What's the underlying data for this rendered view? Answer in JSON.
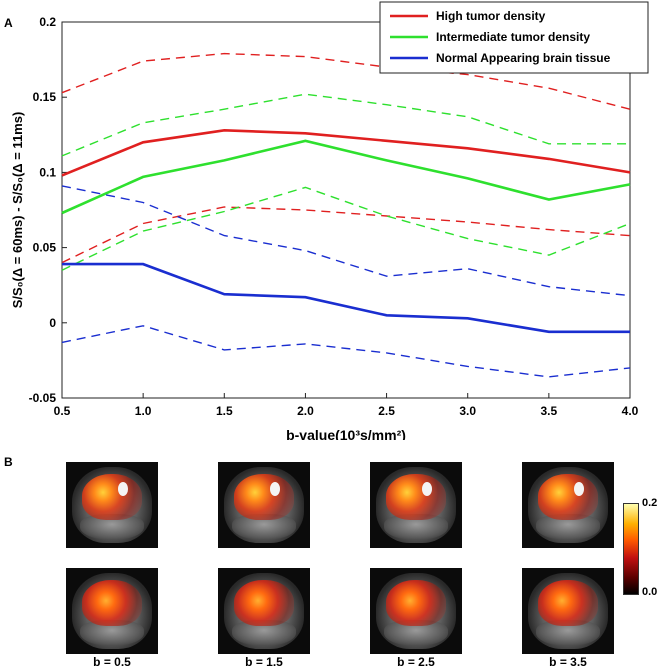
{
  "panel_a_label": "A",
  "panel_b_label": "B",
  "chart_data": {
    "type": "line",
    "xlabel": "b-value(10³s/mm²)",
    "ylabel": "S/S₀(Δ = 60ms) - S/S₀(Δ = 11ms)",
    "xlim": [
      0.5,
      4.0
    ],
    "ylim": [
      -0.05,
      0.2
    ],
    "x_ticks": [
      0.5,
      1.0,
      1.5,
      2.0,
      2.5,
      3.0,
      3.5,
      4.0
    ],
    "x_tick_labels": [
      "0.5",
      "1.0",
      "1.5",
      "2.0",
      "2.5",
      "3.0",
      "3.5",
      "4.0"
    ],
    "y_ticks": [
      -0.05,
      0,
      0.05,
      0.1,
      0.15,
      0.2
    ],
    "y_tick_labels": [
      "-0.05",
      "0",
      "0.05",
      "0.1",
      "0.15",
      "0.2"
    ],
    "x": [
      0.5,
      1.0,
      1.5,
      2.0,
      2.5,
      3.0,
      3.5,
      4.0
    ],
    "legend_position": "top-right",
    "series": [
      {
        "name": "High tumor density",
        "color": "#e02020",
        "style": "solid",
        "values": [
          0.098,
          0.12,
          0.128,
          0.126,
          0.121,
          0.116,
          0.109,
          0.1
        ]
      },
      {
        "name": "High tumor density (upper bound)",
        "color": "#e02020",
        "style": "dashed",
        "values": [
          0.153,
          0.174,
          0.179,
          0.177,
          0.17,
          0.165,
          0.156,
          0.142
        ]
      },
      {
        "name": "High tumor density (lower bound)",
        "color": "#e02020",
        "style": "dashed",
        "values": [
          0.04,
          0.066,
          0.077,
          0.075,
          0.071,
          0.067,
          0.062,
          0.058
        ]
      },
      {
        "name": "Intermediate tumor density",
        "color": "#2ee02e",
        "style": "solid",
        "values": [
          0.073,
          0.097,
          0.108,
          0.121,
          0.108,
          0.096,
          0.082,
          0.092
        ]
      },
      {
        "name": "Intermediate tumor density (upper bound)",
        "color": "#2ee02e",
        "style": "dashed",
        "values": [
          0.111,
          0.133,
          0.142,
          0.152,
          0.145,
          0.137,
          0.119,
          0.119
        ]
      },
      {
        "name": "Intermediate tumor density (lower bound)",
        "color": "#2ee02e",
        "style": "dashed",
        "values": [
          0.035,
          0.061,
          0.074,
          0.09,
          0.071,
          0.056,
          0.045,
          0.066
        ]
      },
      {
        "name": "Normal Appearing brain tissue",
        "color": "#1a2ed0",
        "style": "solid",
        "values": [
          0.039,
          0.039,
          0.019,
          0.017,
          0.005,
          0.003,
          -0.006,
          -0.006
        ]
      },
      {
        "name": "Normal Appearing brain tissue (upper bound)",
        "color": "#1a2ed0",
        "style": "dashed",
        "values": [
          0.091,
          0.08,
          0.058,
          0.048,
          0.031,
          0.036,
          0.024,
          0.018
        ]
      },
      {
        "name": "Normal Appearing brain tissue (lower bound)",
        "color": "#1a2ed0",
        "style": "dashed",
        "values": [
          -0.013,
          -0.002,
          -0.018,
          -0.014,
          -0.02,
          -0.029,
          -0.036,
          -0.03
        ]
      }
    ],
    "legend": [
      {
        "label": "High tumor density",
        "color": "#e02020"
      },
      {
        "label": "Intermediate tumor density",
        "color": "#2ee02e"
      },
      {
        "label": "Normal Appearing brain tissue",
        "color": "#1a2ed0"
      }
    ]
  },
  "panel_b": {
    "b_labels": [
      "b = 0.5",
      "b = 1.5",
      "b = 2.5",
      "b = 3.5"
    ],
    "colorbar_max": "0.2",
    "colorbar_min": "0.0"
  }
}
